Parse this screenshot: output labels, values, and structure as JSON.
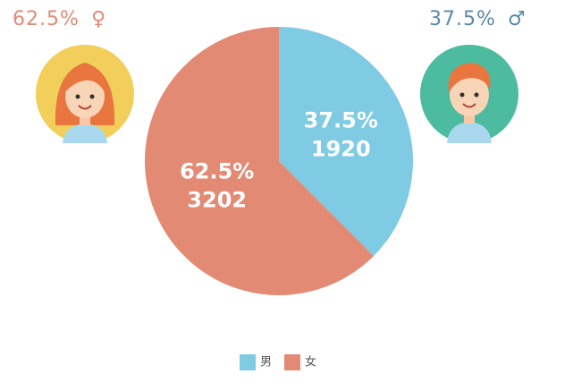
{
  "chart_data": {
    "type": "pie",
    "categories": [
      "男",
      "女"
    ],
    "values": [
      37.5,
      62.5
    ],
    "value_labels": [
      "37.5%",
      "62.5%"
    ],
    "counts": [
      1920,
      3202
    ],
    "colors": [
      "#7ecbe3",
      "#e38a74"
    ],
    "symbols": [
      "♂",
      "♀"
    ],
    "legend": "bottom"
  }
}
